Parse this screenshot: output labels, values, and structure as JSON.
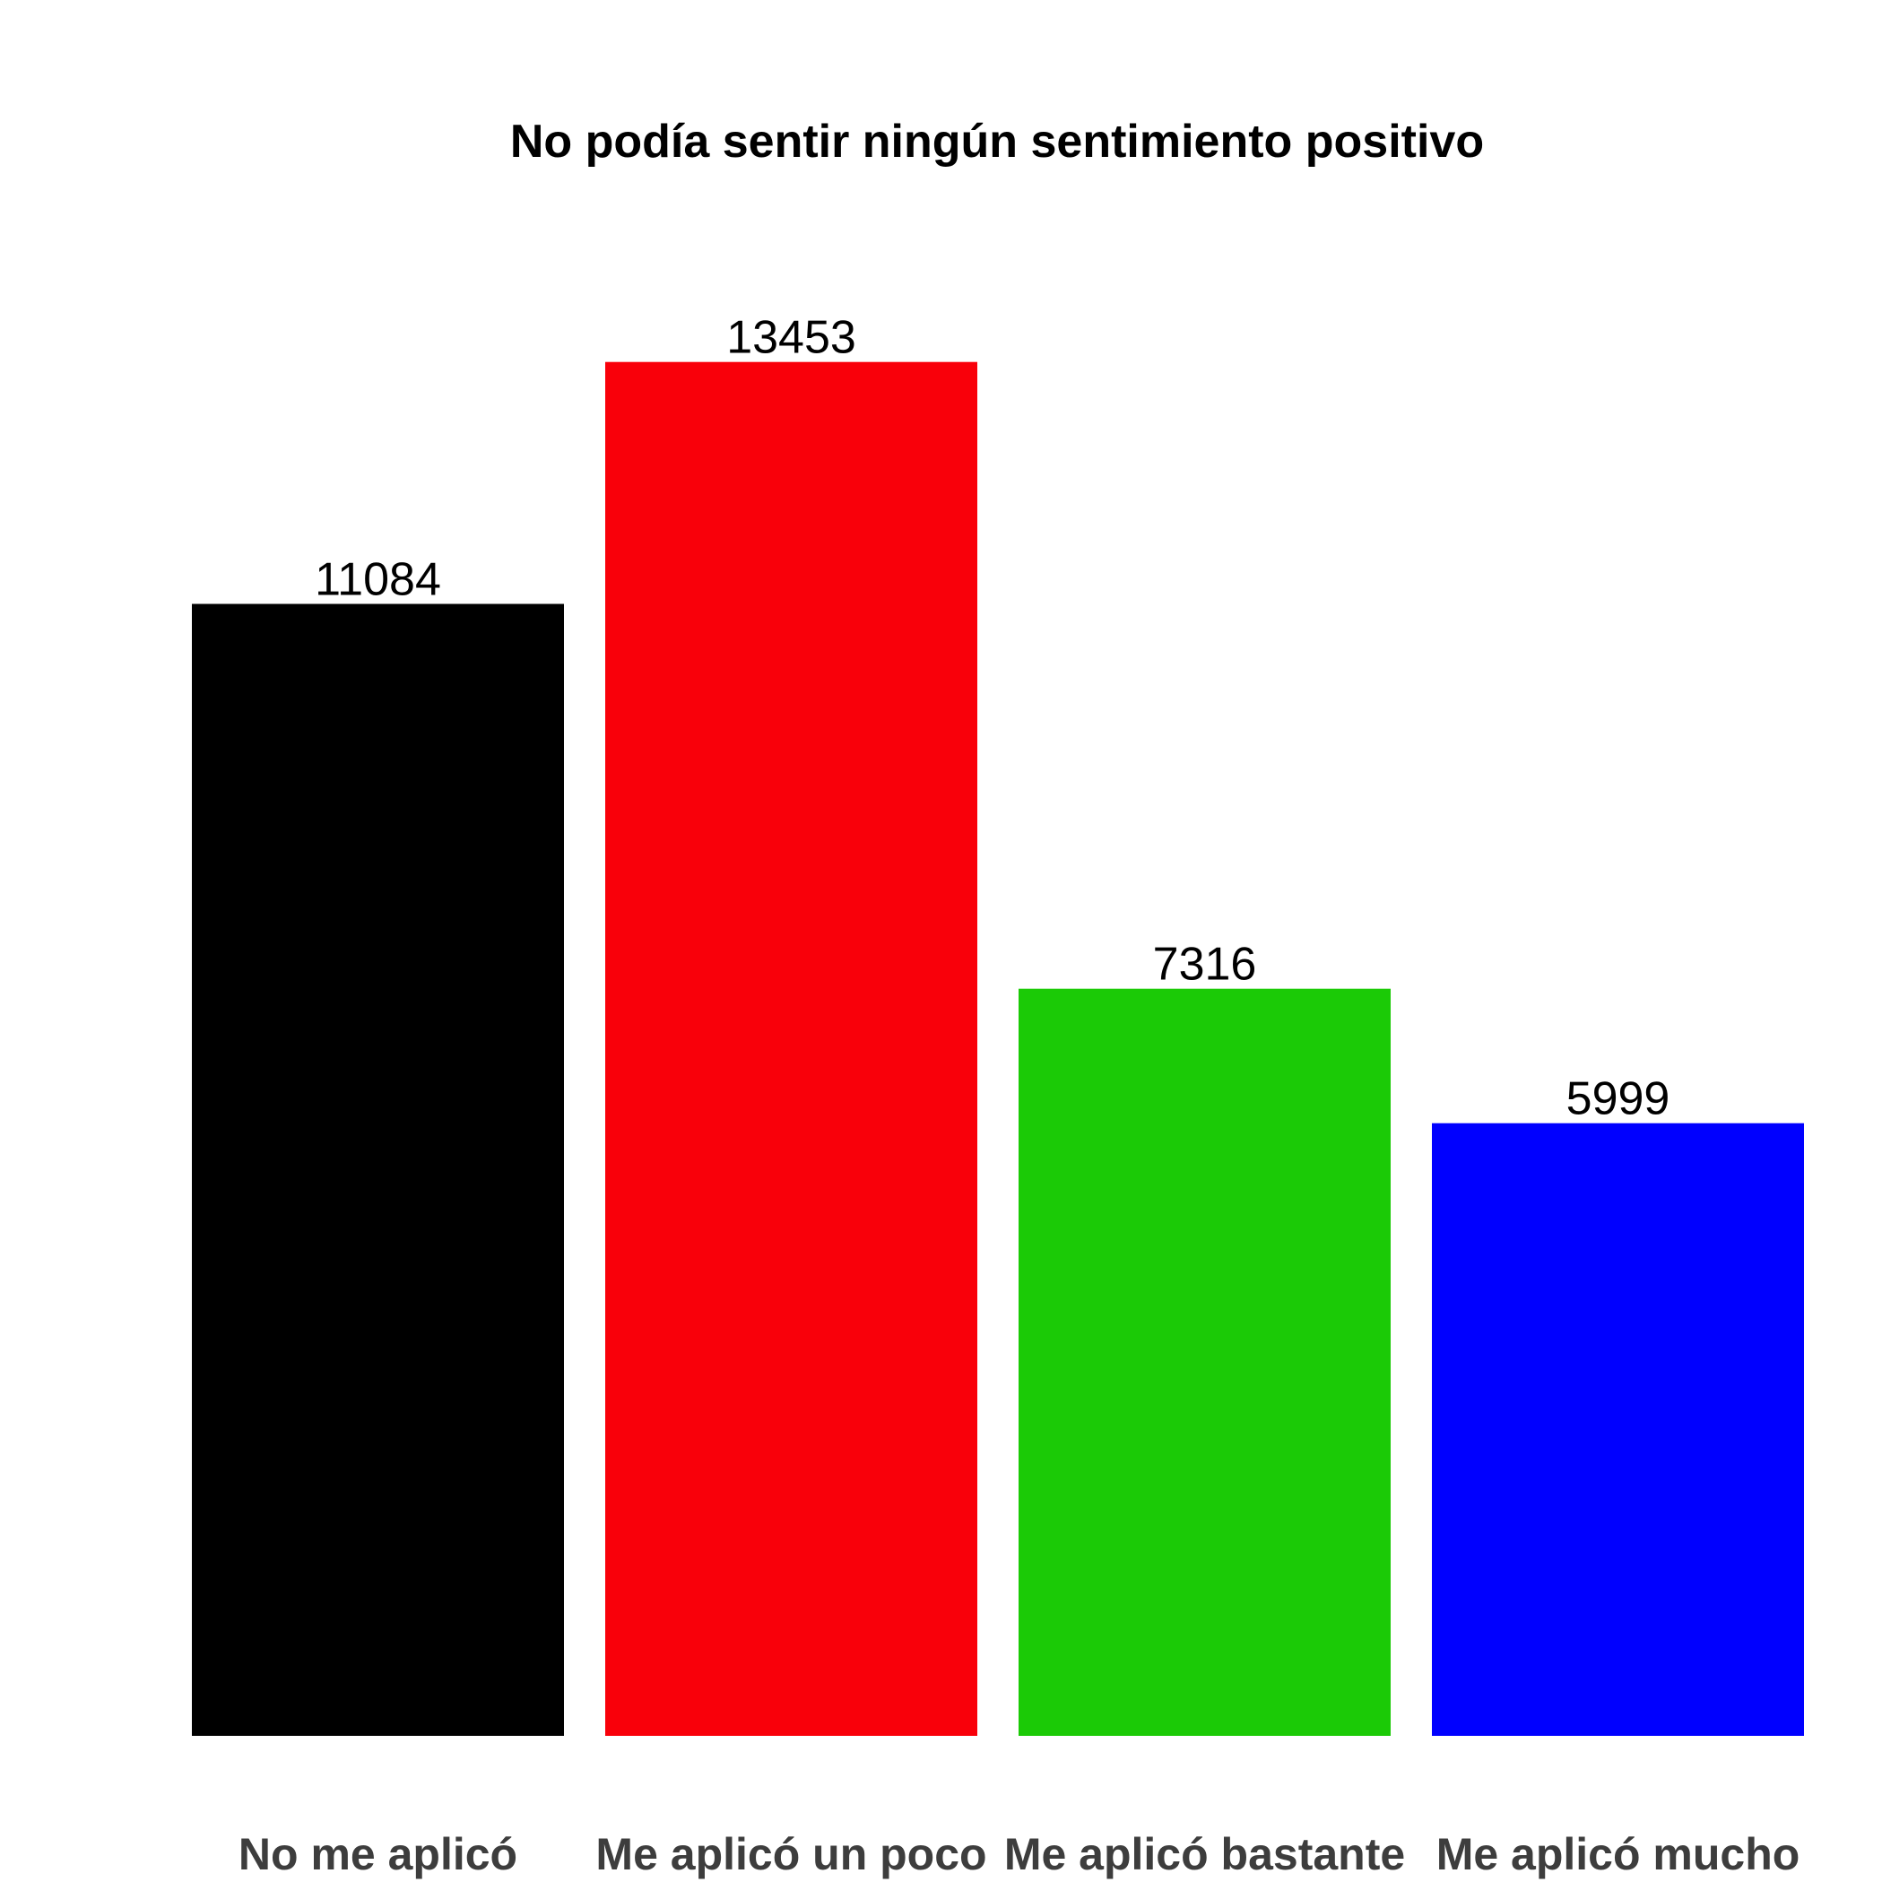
{
  "chart_data": {
    "type": "bar",
    "title": "No podía sentir ningún sentimiento positivo",
    "xlabel": "",
    "ylabel": "",
    "categories": [
      "No me aplicó",
      "Me aplicó un poco",
      "Me aplicó bastante",
      "Me aplicó mucho"
    ],
    "values": [
      11084,
      13453,
      7316,
      5999
    ],
    "colors": [
      "#000000",
      "#f9000a",
      "#1bca06",
      "#0000ff"
    ],
    "ylim": [
      0,
      16000
    ],
    "grid": false,
    "legend": "none",
    "data_labels": true
  }
}
